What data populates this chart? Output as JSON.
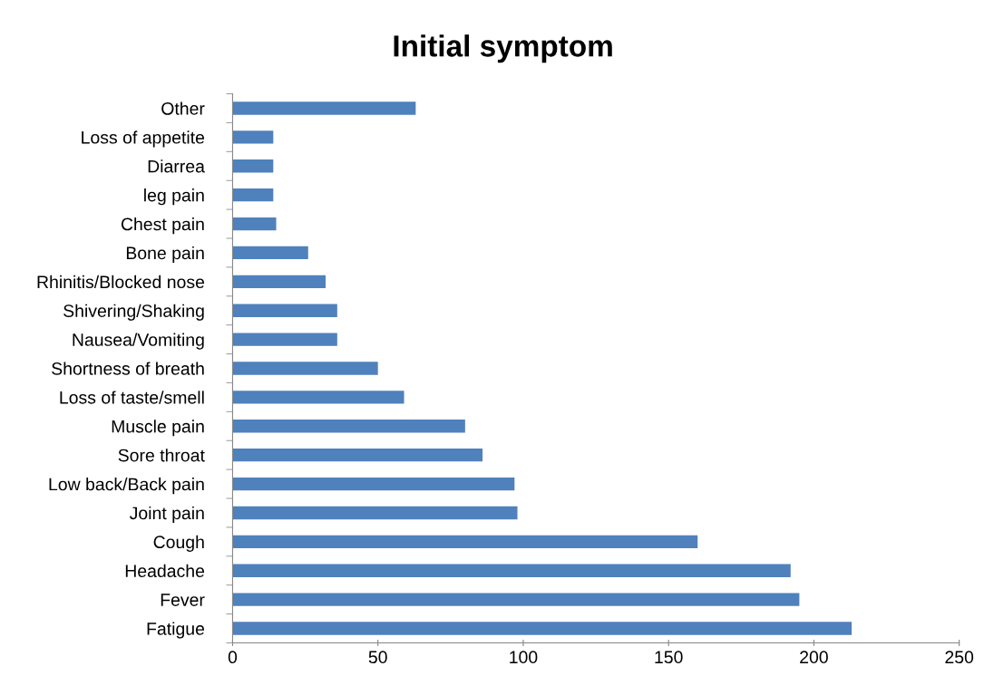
{
  "chart_data": {
    "type": "bar",
    "orientation": "horizontal",
    "title": "Initial symptom",
    "categories": [
      "Other",
      "Loss of appetite",
      "Diarrea",
      "leg pain",
      "Chest pain",
      "Bone pain",
      "Rhinitis/Blocked nose",
      "Shivering/Shaking",
      "Nausea/Vomiting",
      "Shortness of breath",
      "Loss of taste/smell",
      "Muscle pain",
      "Sore throat",
      "Low back/Back pain",
      "Joint pain",
      "Cough",
      "Headache",
      "Fever",
      "Fatigue"
    ],
    "values": [
      63,
      14,
      14,
      14,
      15,
      26,
      32,
      36,
      36,
      50,
      59,
      80,
      86,
      97,
      98,
      160,
      192,
      195,
      213
    ],
    "color": "#4f81bd",
    "xlim": [
      0,
      250
    ],
    "xticks": [
      0,
      50,
      100,
      150,
      200,
      250
    ],
    "grid": false,
    "legend": false
  }
}
